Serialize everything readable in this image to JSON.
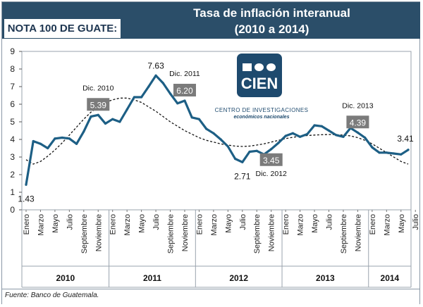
{
  "header": {
    "note_label": "NOTA 100 DE GUATE:",
    "title_line1": "Tasa de inflación interanual",
    "title_line2": "(2010 a 2014)"
  },
  "logo": {
    "name": "CIEN",
    "full_name": "CENTRO DE INVESTIGACIONES",
    "subtitle": "económicos nacionales"
  },
  "footer": {
    "source": "Fuente: Banco de Guatemala."
  },
  "colors": {
    "header_bg": "#2b4e69",
    "series": "#1d5f85",
    "trend": "#111111",
    "callout_bg": "#7b7b7b"
  },
  "chart_data": {
    "type": "line",
    "title": "Tasa de inflación interanual (2010 a 2014)",
    "xlabel": "",
    "ylabel": "",
    "ylim": [
      0,
      9
    ],
    "yticks": [
      "0",
      "1",
      "2",
      "3",
      "4",
      "5",
      "6",
      "7",
      "8",
      "9"
    ],
    "month_labels": [
      "Enero",
      "Marzo",
      "Mayo",
      "Julio",
      "Septiembre",
      "Noviembre",
      "Enero",
      "Marzo",
      "Mayo",
      "Julio",
      "Septiembre",
      "Noviembre",
      "Enero",
      "Marzo",
      "Mayo",
      "Julio",
      "Septiembre",
      "Noviembre",
      "Enero",
      "Marzo",
      "Mayo",
      "Julio",
      "Septiembre",
      "Noviembre",
      "Enero",
      "Marzo",
      "Mayo",
      "Julio"
    ],
    "month_label_index": [
      0,
      2,
      4,
      6,
      8,
      10,
      12,
      14,
      16,
      18,
      20,
      22,
      24,
      26,
      28,
      30,
      32,
      34,
      36,
      38,
      40,
      42,
      44,
      46,
      48,
      50,
      52,
      54
    ],
    "year_labels": [
      "2010",
      "2011",
      "2012",
      "2013",
      "2014"
    ],
    "year_spans": [
      [
        0,
        11
      ],
      [
        12,
        23
      ],
      [
        24,
        35
      ],
      [
        36,
        47
      ],
      [
        48,
        54
      ]
    ],
    "series": [
      {
        "name": "Inflación interanual",
        "values": [
          1.43,
          3.9,
          3.75,
          3.5,
          4.05,
          4.1,
          4.05,
          3.75,
          4.45,
          5.3,
          5.39,
          4.9,
          5.15,
          5.0,
          5.7,
          6.4,
          6.4,
          7.0,
          7.63,
          7.2,
          6.6,
          6.05,
          6.2,
          5.25,
          5.15,
          4.6,
          4.35,
          4.0,
          3.6,
          2.9,
          2.71,
          3.3,
          3.35,
          3.15,
          3.45,
          3.8,
          4.2,
          4.35,
          4.15,
          4.3,
          4.8,
          4.75,
          4.5,
          4.25,
          4.15,
          4.65,
          4.39,
          4.1,
          3.55,
          3.25,
          3.25,
          3.2,
          3.15,
          3.41
        ]
      },
      {
        "name": "Tendencia",
        "values": [
          2.85,
          2.6,
          2.75,
          3.05,
          3.4,
          3.8,
          4.25,
          4.7,
          5.15,
          5.55,
          5.85,
          6.1,
          6.25,
          6.35,
          6.35,
          6.25,
          6.1,
          5.85,
          5.6,
          5.3,
          5.0,
          4.75,
          4.5,
          4.3,
          4.1,
          3.95,
          3.85,
          3.75,
          3.68,
          3.62,
          3.6,
          3.62,
          3.68,
          3.75,
          3.85,
          3.95,
          4.05,
          4.12,
          4.18,
          4.22,
          4.25,
          4.27,
          4.28,
          4.27,
          4.25,
          4.2,
          4.1,
          3.95,
          3.75,
          3.5,
          3.25,
          3.0,
          2.75,
          2.6
        ]
      }
    ],
    "annotations": [
      {
        "index": 0,
        "value_label": "1.43",
        "boxed": false,
        "period": ""
      },
      {
        "index": 10,
        "value_label": "5.39",
        "boxed": true,
        "period": "Dic. 2010"
      },
      {
        "index": 18,
        "value_label": "7.63",
        "boxed": false,
        "period": ""
      },
      {
        "index": 22,
        "value_label": "6.20",
        "boxed": true,
        "period": "Dic. 2011"
      },
      {
        "index": 30,
        "value_label": "2.71",
        "boxed": false,
        "period": ""
      },
      {
        "index": 34,
        "value_label": "3.45",
        "boxed": true,
        "period": "Dic. 2012"
      },
      {
        "index": 46,
        "value_label": "4.39",
        "boxed": true,
        "period": "Dic. 2013"
      },
      {
        "index": 53,
        "value_label": "3.41",
        "boxed": false,
        "period": ""
      }
    ]
  }
}
